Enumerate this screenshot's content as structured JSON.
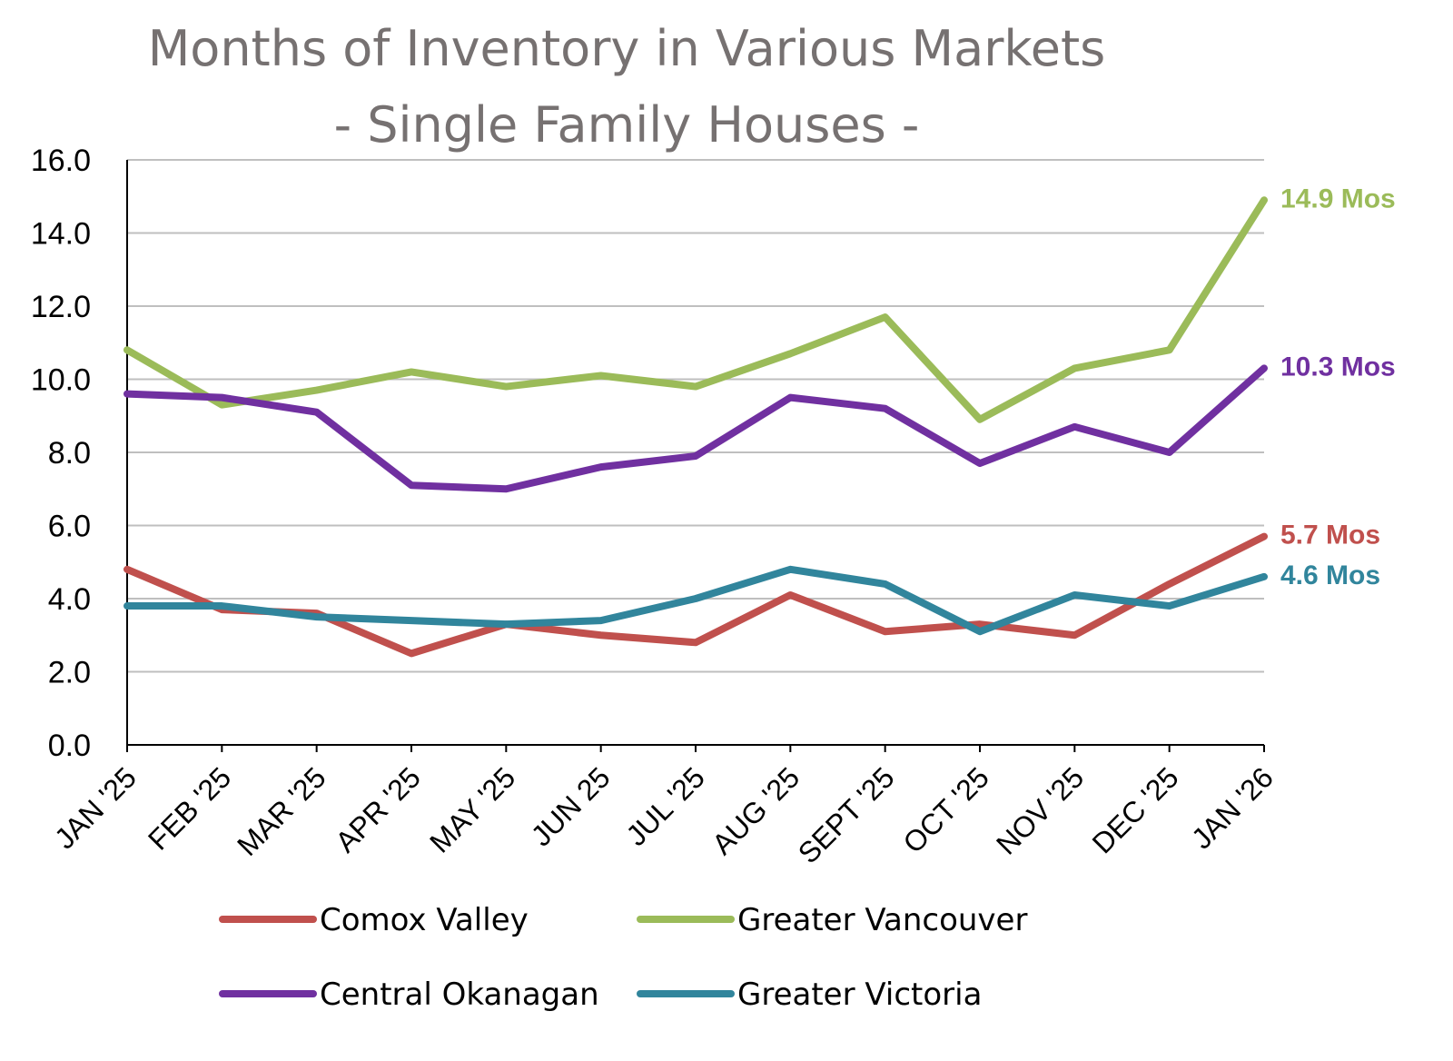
{
  "chart_data": {
    "type": "line",
    "title": "Months of Inventory in Various Markets",
    "subtitle": "- Single Family Houses -",
    "xlabel": "",
    "ylabel": "",
    "ylim": [
      0,
      16
    ],
    "yticks": [
      "0.0",
      "2.0",
      "4.0",
      "6.0",
      "8.0",
      "10.0",
      "12.0",
      "14.0",
      "16.0"
    ],
    "grid": true,
    "legend_position": "bottom",
    "categories": [
      "JAN '25",
      "FEB '25",
      "MAR '25",
      "APR '25",
      "MAY '25",
      "JUN 25",
      "JUL '25",
      "AUG '25",
      "SEPT '25",
      "OCT '25",
      "NOV '25",
      "DEC '25",
      "JAN '26"
    ],
    "series": [
      {
        "name": "Comox Valley",
        "color": "#C0504D",
        "end_label": "5.7 Mos",
        "values": [
          4.8,
          3.7,
          3.6,
          2.5,
          3.3,
          3.0,
          2.8,
          4.1,
          3.1,
          3.3,
          3.0,
          4.4,
          5.7
        ]
      },
      {
        "name": "Greater Vancouver",
        "color": "#9BBB59",
        "end_label": "14.9 Mos",
        "values": [
          10.8,
          9.3,
          9.7,
          10.2,
          9.8,
          10.1,
          9.8,
          10.7,
          11.7,
          8.9,
          10.3,
          10.8,
          14.9
        ]
      },
      {
        "name": "Central Okanagan",
        "color": "#7030A0",
        "end_label": "10.3 Mos",
        "values": [
          9.6,
          9.5,
          9.1,
          7.1,
          7.0,
          7.6,
          7.9,
          9.5,
          9.2,
          7.7,
          8.7,
          8.0,
          10.3
        ]
      },
      {
        "name": "Greater Victoria",
        "color": "#31859C",
        "end_label": "4.6 Mos",
        "values": [
          3.8,
          3.8,
          3.5,
          3.4,
          3.3,
          3.4,
          4.0,
          4.8,
          4.4,
          3.1,
          4.1,
          3.8,
          4.6
        ]
      }
    ]
  }
}
